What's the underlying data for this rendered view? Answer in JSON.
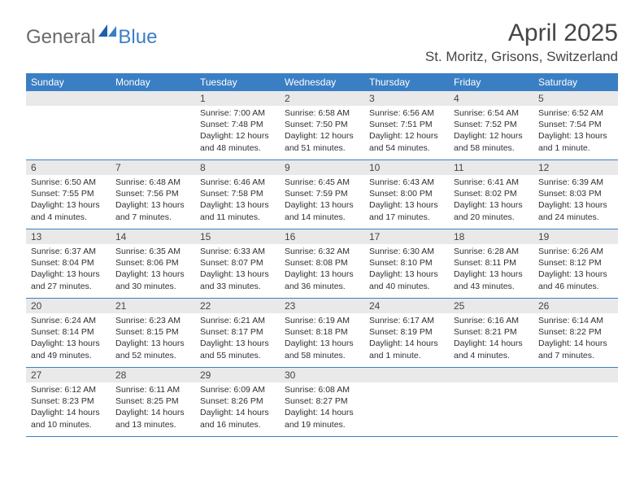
{
  "logo": {
    "general": "General",
    "blue": "Blue"
  },
  "title": "April 2025",
  "location": "St. Moritz, Grisons, Switzerland",
  "colors": {
    "header_blue": "#3a7fc4",
    "daynum_bg": "#e9e9e9",
    "text_dark": "#454545",
    "logo_gray": "#6a6a6a"
  },
  "weekdays": [
    "Sunday",
    "Monday",
    "Tuesday",
    "Wednesday",
    "Thursday",
    "Friday",
    "Saturday"
  ],
  "weeks": [
    [
      null,
      null,
      {
        "n": "1",
        "sr": "Sunrise: 7:00 AM",
        "ss": "Sunset: 7:48 PM",
        "dl1": "Daylight: 12 hours",
        "dl2": "and 48 minutes."
      },
      {
        "n": "2",
        "sr": "Sunrise: 6:58 AM",
        "ss": "Sunset: 7:50 PM",
        "dl1": "Daylight: 12 hours",
        "dl2": "and 51 minutes."
      },
      {
        "n": "3",
        "sr": "Sunrise: 6:56 AM",
        "ss": "Sunset: 7:51 PM",
        "dl1": "Daylight: 12 hours",
        "dl2": "and 54 minutes."
      },
      {
        "n": "4",
        "sr": "Sunrise: 6:54 AM",
        "ss": "Sunset: 7:52 PM",
        "dl1": "Daylight: 12 hours",
        "dl2": "and 58 minutes."
      },
      {
        "n": "5",
        "sr": "Sunrise: 6:52 AM",
        "ss": "Sunset: 7:54 PM",
        "dl1": "Daylight: 13 hours",
        "dl2": "and 1 minute."
      }
    ],
    [
      {
        "n": "6",
        "sr": "Sunrise: 6:50 AM",
        "ss": "Sunset: 7:55 PM",
        "dl1": "Daylight: 13 hours",
        "dl2": "and 4 minutes."
      },
      {
        "n": "7",
        "sr": "Sunrise: 6:48 AM",
        "ss": "Sunset: 7:56 PM",
        "dl1": "Daylight: 13 hours",
        "dl2": "and 7 minutes."
      },
      {
        "n": "8",
        "sr": "Sunrise: 6:46 AM",
        "ss": "Sunset: 7:58 PM",
        "dl1": "Daylight: 13 hours",
        "dl2": "and 11 minutes."
      },
      {
        "n": "9",
        "sr": "Sunrise: 6:45 AM",
        "ss": "Sunset: 7:59 PM",
        "dl1": "Daylight: 13 hours",
        "dl2": "and 14 minutes."
      },
      {
        "n": "10",
        "sr": "Sunrise: 6:43 AM",
        "ss": "Sunset: 8:00 PM",
        "dl1": "Daylight: 13 hours",
        "dl2": "and 17 minutes."
      },
      {
        "n": "11",
        "sr": "Sunrise: 6:41 AM",
        "ss": "Sunset: 8:02 PM",
        "dl1": "Daylight: 13 hours",
        "dl2": "and 20 minutes."
      },
      {
        "n": "12",
        "sr": "Sunrise: 6:39 AM",
        "ss": "Sunset: 8:03 PM",
        "dl1": "Daylight: 13 hours",
        "dl2": "and 24 minutes."
      }
    ],
    [
      {
        "n": "13",
        "sr": "Sunrise: 6:37 AM",
        "ss": "Sunset: 8:04 PM",
        "dl1": "Daylight: 13 hours",
        "dl2": "and 27 minutes."
      },
      {
        "n": "14",
        "sr": "Sunrise: 6:35 AM",
        "ss": "Sunset: 8:06 PM",
        "dl1": "Daylight: 13 hours",
        "dl2": "and 30 minutes."
      },
      {
        "n": "15",
        "sr": "Sunrise: 6:33 AM",
        "ss": "Sunset: 8:07 PM",
        "dl1": "Daylight: 13 hours",
        "dl2": "and 33 minutes."
      },
      {
        "n": "16",
        "sr": "Sunrise: 6:32 AM",
        "ss": "Sunset: 8:08 PM",
        "dl1": "Daylight: 13 hours",
        "dl2": "and 36 minutes."
      },
      {
        "n": "17",
        "sr": "Sunrise: 6:30 AM",
        "ss": "Sunset: 8:10 PM",
        "dl1": "Daylight: 13 hours",
        "dl2": "and 40 minutes."
      },
      {
        "n": "18",
        "sr": "Sunrise: 6:28 AM",
        "ss": "Sunset: 8:11 PM",
        "dl1": "Daylight: 13 hours",
        "dl2": "and 43 minutes."
      },
      {
        "n": "19",
        "sr": "Sunrise: 6:26 AM",
        "ss": "Sunset: 8:12 PM",
        "dl1": "Daylight: 13 hours",
        "dl2": "and 46 minutes."
      }
    ],
    [
      {
        "n": "20",
        "sr": "Sunrise: 6:24 AM",
        "ss": "Sunset: 8:14 PM",
        "dl1": "Daylight: 13 hours",
        "dl2": "and 49 minutes."
      },
      {
        "n": "21",
        "sr": "Sunrise: 6:23 AM",
        "ss": "Sunset: 8:15 PM",
        "dl1": "Daylight: 13 hours",
        "dl2": "and 52 minutes."
      },
      {
        "n": "22",
        "sr": "Sunrise: 6:21 AM",
        "ss": "Sunset: 8:17 PM",
        "dl1": "Daylight: 13 hours",
        "dl2": "and 55 minutes."
      },
      {
        "n": "23",
        "sr": "Sunrise: 6:19 AM",
        "ss": "Sunset: 8:18 PM",
        "dl1": "Daylight: 13 hours",
        "dl2": "and 58 minutes."
      },
      {
        "n": "24",
        "sr": "Sunrise: 6:17 AM",
        "ss": "Sunset: 8:19 PM",
        "dl1": "Daylight: 14 hours",
        "dl2": "and 1 minute."
      },
      {
        "n": "25",
        "sr": "Sunrise: 6:16 AM",
        "ss": "Sunset: 8:21 PM",
        "dl1": "Daylight: 14 hours",
        "dl2": "and 4 minutes."
      },
      {
        "n": "26",
        "sr": "Sunrise: 6:14 AM",
        "ss": "Sunset: 8:22 PM",
        "dl1": "Daylight: 14 hours",
        "dl2": "and 7 minutes."
      }
    ],
    [
      {
        "n": "27",
        "sr": "Sunrise: 6:12 AM",
        "ss": "Sunset: 8:23 PM",
        "dl1": "Daylight: 14 hours",
        "dl2": "and 10 minutes."
      },
      {
        "n": "28",
        "sr": "Sunrise: 6:11 AM",
        "ss": "Sunset: 8:25 PM",
        "dl1": "Daylight: 14 hours",
        "dl2": "and 13 minutes."
      },
      {
        "n": "29",
        "sr": "Sunrise: 6:09 AM",
        "ss": "Sunset: 8:26 PM",
        "dl1": "Daylight: 14 hours",
        "dl2": "and 16 minutes."
      },
      {
        "n": "30",
        "sr": "Sunrise: 6:08 AM",
        "ss": "Sunset: 8:27 PM",
        "dl1": "Daylight: 14 hours",
        "dl2": "and 19 minutes."
      },
      null,
      null,
      null
    ]
  ]
}
